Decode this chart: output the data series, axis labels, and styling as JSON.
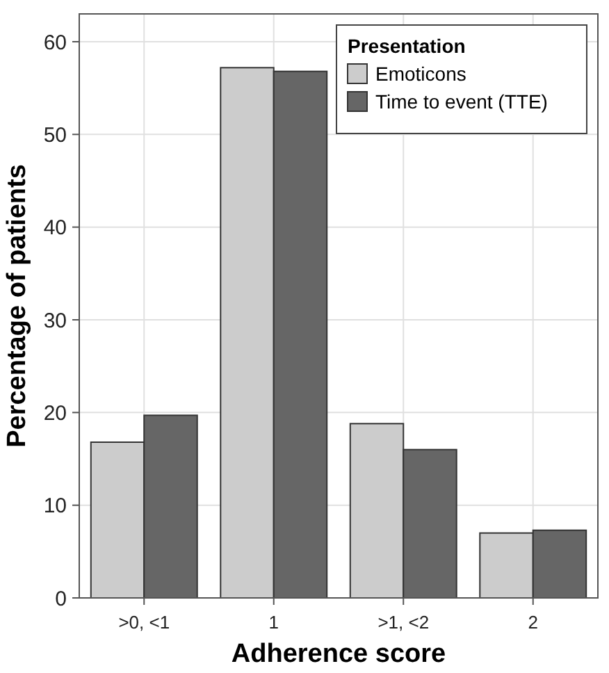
{
  "chart_data": {
    "type": "bar",
    "xlabel": "Adherence score",
    "ylabel": "Percentage of patients",
    "legend_title": "Presentation",
    "categories": [
      ">0, <1",
      "1",
      ">1, <2",
      "2"
    ],
    "series": [
      {
        "name": "Emoticons",
        "color": "#cccccc",
        "values": [
          16.8,
          57.2,
          18.8,
          7.0
        ]
      },
      {
        "name": "Time to event (TTE)",
        "color": "#666666",
        "values": [
          19.7,
          56.8,
          16.0,
          7.3
        ]
      }
    ],
    "ylim": [
      0,
      63
    ],
    "yticks": [
      0,
      10,
      20,
      30,
      40,
      50,
      60
    ],
    "grid": true,
    "legend": "top right"
  }
}
